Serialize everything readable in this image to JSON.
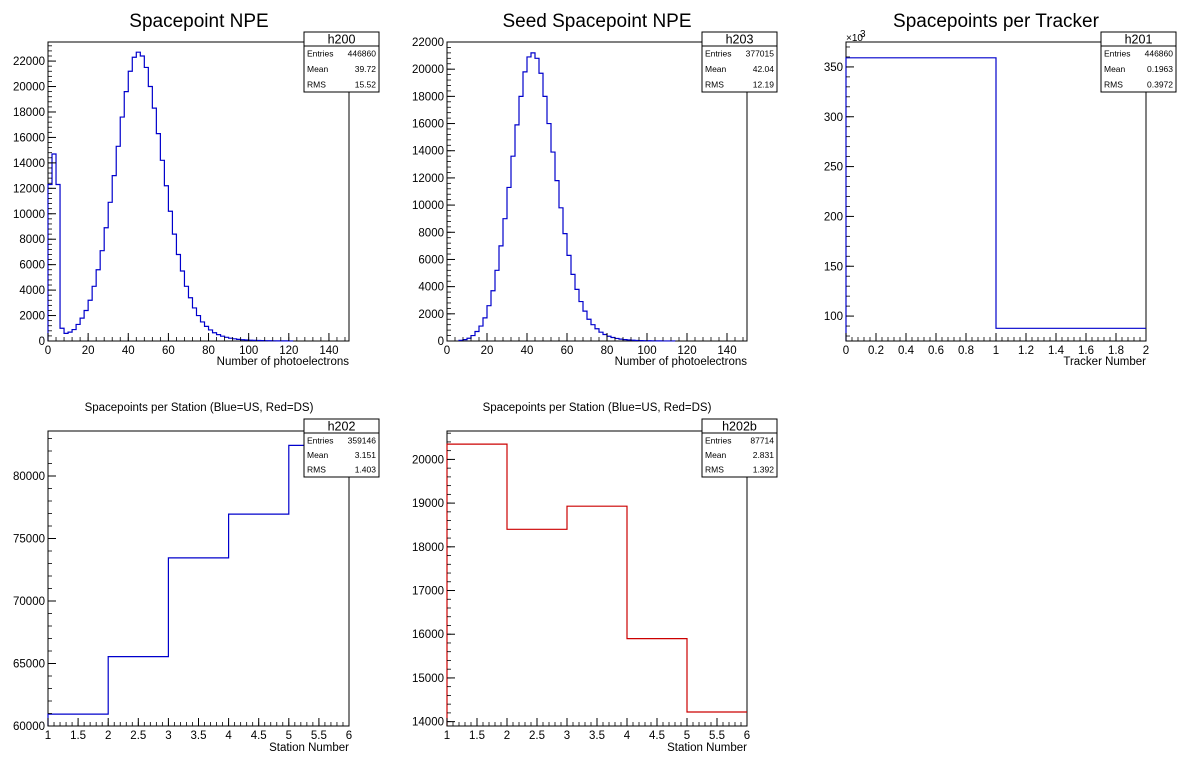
{
  "colors": {
    "blue": "#0000cc",
    "red": "#cc0000",
    "axis": "#000000"
  },
  "chart_data": [
    {
      "id": "h200",
      "type": "histogram",
      "title": "Spacepoint NPE",
      "xlabel": "Number of photoelectrons",
      "ylabel": "",
      "xlim": [
        0,
        150
      ],
      "ylim": [
        0,
        23500
      ],
      "xticks": [
        0,
        20,
        40,
        60,
        80,
        100,
        120,
        140
      ],
      "xtick_labels": [
        "0",
        "20",
        "40",
        "60",
        "80",
        "100",
        "120",
        "140"
      ],
      "yticks": [
        0,
        2000,
        4000,
        6000,
        8000,
        10000,
        12000,
        14000,
        16000,
        18000,
        20000,
        22000
      ],
      "ytick_labels": [
        "0",
        "2000",
        "4000",
        "6000",
        "8000",
        "10000",
        "12000",
        "14000",
        "16000",
        "18000",
        "20000",
        "22000"
      ],
      "series_color": "blue",
      "bin_width": 2,
      "bins": [
        [
          0,
          12300
        ],
        [
          2,
          14700
        ],
        [
          4,
          12300
        ],
        [
          6,
          1000
        ],
        [
          8,
          600
        ],
        [
          10,
          700
        ],
        [
          12,
          900
        ],
        [
          14,
          1300
        ],
        [
          16,
          1800
        ],
        [
          18,
          2400
        ],
        [
          20,
          3200
        ],
        [
          22,
          4300
        ],
        [
          24,
          5600
        ],
        [
          26,
          7100
        ],
        [
          28,
          8900
        ],
        [
          30,
          10900
        ],
        [
          32,
          13000
        ],
        [
          34,
          15300
        ],
        [
          36,
          17600
        ],
        [
          38,
          19600
        ],
        [
          40,
          21200
        ],
        [
          42,
          22300
        ],
        [
          44,
          22700
        ],
        [
          46,
          22400
        ],
        [
          48,
          21500
        ],
        [
          50,
          20000
        ],
        [
          52,
          18300
        ],
        [
          54,
          16300
        ],
        [
          56,
          14200
        ],
        [
          58,
          12200
        ],
        [
          60,
          10200
        ],
        [
          62,
          8400
        ],
        [
          64,
          6800
        ],
        [
          66,
          5500
        ],
        [
          68,
          4300
        ],
        [
          70,
          3400
        ],
        [
          72,
          2600
        ],
        [
          74,
          2000
        ],
        [
          76,
          1500
        ],
        [
          78,
          1150
        ],
        [
          80,
          870
        ],
        [
          82,
          650
        ],
        [
          84,
          500
        ],
        [
          86,
          380
        ],
        [
          88,
          290
        ],
        [
          90,
          220
        ],
        [
          92,
          170
        ],
        [
          94,
          130
        ],
        [
          96,
          100
        ],
        [
          98,
          80
        ],
        [
          100,
          60
        ],
        [
          102,
          50
        ],
        [
          104,
          40
        ],
        [
          106,
          30
        ],
        [
          108,
          25
        ],
        [
          110,
          20
        ],
        [
          112,
          15
        ],
        [
          114,
          12
        ],
        [
          116,
          10
        ],
        [
          118,
          8
        ],
        [
          120,
          6
        ]
      ],
      "stats": {
        "name": "h200",
        "rows": [
          [
            "Entries",
            "446860"
          ],
          [
            "Mean",
            "39.72"
          ],
          [
            "RMS",
            "15.52"
          ]
        ]
      }
    },
    {
      "id": "h203",
      "type": "histogram",
      "title": "Seed Spacepoint NPE",
      "xlabel": "Number of photoelectrons",
      "ylabel": "",
      "xlim": [
        0,
        150
      ],
      "ylim": [
        0,
        22000
      ],
      "xticks": [
        0,
        20,
        40,
        60,
        80,
        100,
        120,
        140
      ],
      "xtick_labels": [
        "0",
        "20",
        "40",
        "60",
        "80",
        "100",
        "120",
        "140"
      ],
      "yticks": [
        0,
        2000,
        4000,
        6000,
        8000,
        10000,
        12000,
        14000,
        16000,
        18000,
        20000,
        22000
      ],
      "ytick_labels": [
        "0",
        "2000",
        "4000",
        "6000",
        "8000",
        "10000",
        "12000",
        "14000",
        "16000",
        "18000",
        "20000",
        "22000"
      ],
      "series_color": "blue",
      "bin_width": 2,
      "bins": [
        [
          6,
          50
        ],
        [
          8,
          100
        ],
        [
          10,
          200
        ],
        [
          12,
          400
        ],
        [
          14,
          700
        ],
        [
          16,
          1100
        ],
        [
          18,
          1700
        ],
        [
          20,
          2600
        ],
        [
          22,
          3700
        ],
        [
          24,
          5200
        ],
        [
          26,
          7000
        ],
        [
          28,
          9000
        ],
        [
          30,
          11300
        ],
        [
          32,
          13600
        ],
        [
          34,
          15900
        ],
        [
          36,
          18000
        ],
        [
          38,
          19800
        ],
        [
          40,
          20900
        ],
        [
          42,
          21200
        ],
        [
          44,
          20800
        ],
        [
          46,
          19700
        ],
        [
          48,
          18000
        ],
        [
          50,
          16000
        ],
        [
          52,
          13900
        ],
        [
          54,
          11800
        ],
        [
          56,
          9800
        ],
        [
          58,
          7900
        ],
        [
          60,
          6300
        ],
        [
          62,
          4900
        ],
        [
          64,
          3800
        ],
        [
          66,
          2900
        ],
        [
          68,
          2200
        ],
        [
          70,
          1600
        ],
        [
          72,
          1200
        ],
        [
          74,
          900
        ],
        [
          76,
          650
        ],
        [
          78,
          480
        ],
        [
          80,
          350
        ],
        [
          82,
          260
        ],
        [
          84,
          190
        ],
        [
          86,
          140
        ],
        [
          88,
          100
        ],
        [
          90,
          75
        ],
        [
          92,
          55
        ],
        [
          94,
          40
        ],
        [
          96,
          30
        ],
        [
          98,
          22
        ],
        [
          100,
          16
        ],
        [
          102,
          12
        ],
        [
          104,
          9
        ],
        [
          106,
          7
        ],
        [
          108,
          5
        ],
        [
          110,
          4
        ],
        [
          112,
          3
        ]
      ],
      "stats": {
        "name": "h203",
        "rows": [
          [
            "Entries",
            "377015"
          ],
          [
            "Mean",
            "42.04"
          ],
          [
            "RMS",
            "12.19"
          ]
        ]
      }
    },
    {
      "id": "h201",
      "type": "histogram",
      "title": "Spacepoints per Tracker",
      "xlabel": "Tracker Number",
      "ylabel": "",
      "multiplier": "×10",
      "multiplier_exp": "3",
      "xlim": [
        0,
        2
      ],
      "ylim": [
        75,
        375
      ],
      "xticks": [
        0,
        0.2,
        0.4,
        0.6,
        0.8,
        1,
        1.2,
        1.4,
        1.6,
        1.8,
        2
      ],
      "xtick_labels": [
        "0",
        "0.2",
        "0.4",
        "0.6",
        "0.8",
        "1",
        "1.2",
        "1.4",
        "1.6",
        "1.8",
        "2"
      ],
      "yticks": [
        100,
        150,
        200,
        250,
        300,
        350
      ],
      "ytick_labels": [
        "100",
        "150",
        "200",
        "250",
        "300",
        "350"
      ],
      "series_color": "blue",
      "bin_width": 1,
      "bins": [
        [
          0,
          359.146
        ],
        [
          1,
          87.714
        ]
      ],
      "stats": {
        "name": "h201",
        "rows": [
          [
            "Entries",
            "446860"
          ],
          [
            "Mean",
            "0.1963"
          ],
          [
            "RMS",
            "0.3972"
          ]
        ]
      }
    },
    {
      "id": "h202",
      "type": "histogram",
      "title": "Spacepoints per Station (Blue=US, Red=DS)",
      "xlabel": "Station Number",
      "ylabel": "",
      "xlim": [
        1,
        6
      ],
      "ylim": [
        60000,
        83600
      ],
      "xticks": [
        1,
        1.5,
        2,
        2.5,
        3,
        3.5,
        4,
        4.5,
        5,
        5.5,
        6
      ],
      "xtick_labels": [
        "1",
        "1.5",
        "2",
        "2.5",
        "3",
        "3.5",
        "4",
        "4.5",
        "5",
        "5.5",
        "6"
      ],
      "yticks": [
        60000,
        65000,
        70000,
        75000,
        80000
      ],
      "ytick_labels": [
        "60000",
        "65000",
        "70000",
        "75000",
        "80000"
      ],
      "series_color": "blue",
      "bin_width": 1,
      "bins": [
        [
          1,
          60950
        ],
        [
          2,
          65550
        ],
        [
          3,
          73450
        ],
        [
          4,
          76950
        ],
        [
          5,
          82450
        ]
      ],
      "stats": {
        "name": "h202",
        "rows": [
          [
            "Entries",
            "359146"
          ],
          [
            "Mean",
            "3.151"
          ],
          [
            "RMS",
            "1.403"
          ]
        ]
      }
    },
    {
      "id": "h202b",
      "type": "histogram",
      "title": "Spacepoints per Station (Blue=US, Red=DS)",
      "xlabel": "Station Number",
      "ylabel": "",
      "xlim": [
        1,
        6
      ],
      "ylim": [
        13900,
        20650
      ],
      "xticks": [
        1,
        1.5,
        2,
        2.5,
        3,
        3.5,
        4,
        4.5,
        5,
        5.5,
        6
      ],
      "xtick_labels": [
        "1",
        "1.5",
        "2",
        "2.5",
        "3",
        "3.5",
        "4",
        "4.5",
        "5",
        "5.5",
        "6"
      ],
      "yticks": [
        14000,
        15000,
        16000,
        17000,
        18000,
        19000,
        20000
      ],
      "ytick_labels": [
        "14000",
        "15000",
        "16000",
        "17000",
        "18000",
        "19000",
        "20000"
      ],
      "series_color": "red",
      "bin_width": 1,
      "bins": [
        [
          1,
          20350
        ],
        [
          2,
          18400
        ],
        [
          3,
          18930
        ],
        [
          4,
          15900
        ],
        [
          5,
          14220
        ]
      ],
      "stats": {
        "name": "h202b",
        "rows": [
          [
            "Entries",
            "87714"
          ],
          [
            "Mean",
            "2.831"
          ],
          [
            "RMS",
            "1.392"
          ]
        ]
      }
    }
  ]
}
